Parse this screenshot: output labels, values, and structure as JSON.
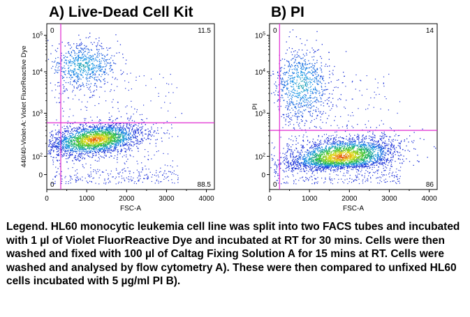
{
  "panels": [
    {
      "title": "A) Live-Dead Cell Kit",
      "xlabel": "FSC-A",
      "ylabel": "440/40-Violet-A: Violet FluorReactive Dye",
      "quadrants": {
        "top_left": "0",
        "top_right": "11.5",
        "bottom_left": "0",
        "bottom_right": "88.5"
      },
      "x_ticks": [
        "0",
        "1000",
        "2000",
        "3000",
        "4000"
      ],
      "y_ticks": [
        "0",
        "10^2",
        "10^3",
        "10^4",
        "10^5"
      ]
    },
    {
      "title": "B) PI",
      "xlabel": "FSC-A",
      "ylabel": "PI",
      "quadrants": {
        "top_left": "0",
        "top_right": "14",
        "bottom_left": "0",
        "bottom_right": "86"
      },
      "x_ticks": [
        "0",
        "1000",
        "2000",
        "3000",
        "4000"
      ],
      "y_ticks": [
        "0",
        "10^2",
        "10^3",
        "10^4",
        "10^5"
      ]
    }
  ],
  "legend_text": "Legend. HL60 monocytic leukemia cell line was split into two FACS tubes and incubated with 1 µl  of Violet FluorReactive Dye and incubated at RT for 30 mins. Cells were then washed and fixed with 100 µl of Caltag Fixing Solution A for 15 mins at RT. Cells were washed and analysed by flow cytometry A). These were then compared to unfixed HL60 cells incubated with 5 µg/ml PI B).",
  "colors": {
    "gate_line": "#e02ad0",
    "dot_low": "#1a2fd8",
    "dot_high": "#e23a10",
    "frame": "#000000"
  },
  "chart_data": [
    {
      "type": "scatter",
      "title": "A) Live-Dead Cell Kit",
      "xlabel": "FSC-A",
      "ylabel": "440/40-Violet-A: Violet FluorReactive Dye",
      "xlim": [
        0,
        4200
      ],
      "y_scale": "biexponential",
      "ylim": [
        -100,
        200000
      ],
      "gate": {
        "x": 350,
        "y": 600
      },
      "quadrant_percent": {
        "top_left": 0,
        "top_right": 11.5,
        "bottom_left": 0,
        "bottom_right": 88.5
      },
      "populations": [
        {
          "center_x": 1200,
          "center_y": 250,
          "spread_x": 600,
          "spread_y": 0.18,
          "fraction": 0.885
        },
        {
          "center_x": 900,
          "center_y": 15000,
          "spread_x": 450,
          "spread_y": 0.3,
          "fraction": 0.115
        }
      ]
    },
    {
      "type": "scatter",
      "title": "B) PI",
      "xlabel": "FSC-A",
      "ylabel": "PI",
      "xlim": [
        0,
        4200
      ],
      "y_scale": "biexponential",
      "ylim": [
        -100,
        200000
      ],
      "gate": {
        "x": 250,
        "y": 400
      },
      "quadrant_percent": {
        "top_left": 0,
        "top_right": 14,
        "bottom_left": 0,
        "bottom_right": 86
      },
      "populations": [
        {
          "center_x": 1800,
          "center_y": 100,
          "spread_x": 700,
          "spread_y": 0.22,
          "fraction": 0.86
        },
        {
          "center_x": 800,
          "center_y": 5000,
          "spread_x": 350,
          "spread_y": 0.45,
          "fraction": 0.14
        }
      ]
    }
  ]
}
